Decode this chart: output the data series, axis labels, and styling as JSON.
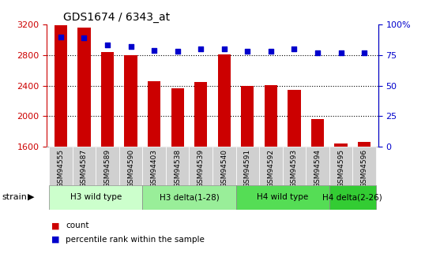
{
  "title": "GDS1674 / 6343_at",
  "samples": [
    "GSM94555",
    "GSM94587",
    "GSM94589",
    "GSM94590",
    "GSM94403",
    "GSM94538",
    "GSM94539",
    "GSM94540",
    "GSM94591",
    "GSM94592",
    "GSM94593",
    "GSM94594",
    "GSM94595",
    "GSM94596"
  ],
  "counts": [
    3195,
    3155,
    2840,
    2800,
    2460,
    2370,
    2450,
    2810,
    2400,
    2405,
    2340,
    1960,
    1645,
    1670
  ],
  "percentiles": [
    90,
    89,
    83,
    82,
    79,
    78,
    80,
    80,
    78,
    78,
    80,
    77,
    77,
    77
  ],
  "bar_color": "#cc0000",
  "dot_color": "#0000cc",
  "ylim_left": [
    1600,
    3200
  ],
  "ylim_right": [
    0,
    100
  ],
  "yticks_left": [
    1600,
    2000,
    2400,
    2800,
    3200
  ],
  "yticks_right": [
    0,
    25,
    50,
    75,
    100
  ],
  "ytick_labels_right": [
    "0",
    "25",
    "50",
    "75",
    "100%"
  ],
  "grid_lines": [
    2000,
    2400,
    2800
  ],
  "groups": [
    {
      "label": "H3 wild type",
      "start": 0,
      "end": 3,
      "color": "#ccffcc"
    },
    {
      "label": "H3 delta(1-28)",
      "start": 4,
      "end": 7,
      "color": "#99ee99"
    },
    {
      "label": "H4 wild type",
      "start": 8,
      "end": 11,
      "color": "#55dd55"
    },
    {
      "label": "H4 delta(2-26)",
      "start": 12,
      "end": 13,
      "color": "#33cc33"
    }
  ],
  "strain_label": "strain",
  "legend_count_label": "count",
  "legend_pct_label": "percentile rank within the sample",
  "bar_color_legend": "#cc0000",
  "dot_color_legend": "#0000cc",
  "tick_label_color_left": "#cc0000",
  "tick_label_color_right": "#0000cc",
  "xtick_bg": "#d0d0d0",
  "bar_width": 0.55,
  "dot_size": 18
}
